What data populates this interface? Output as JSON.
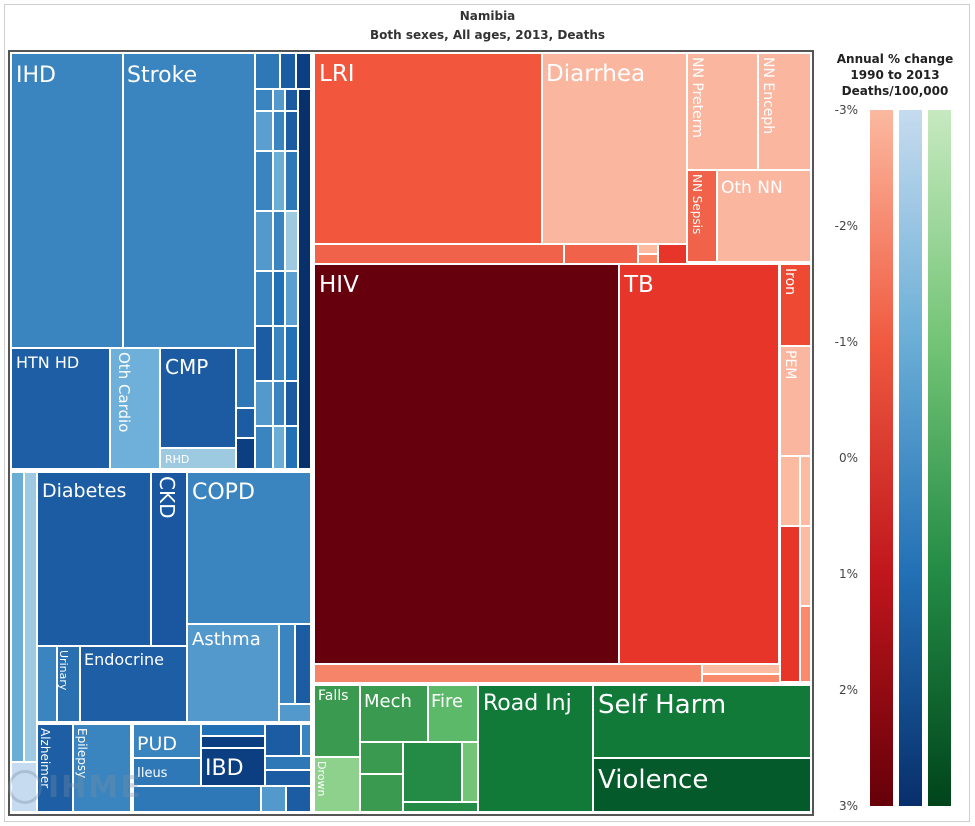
{
  "title": "Namibia",
  "subtitle": "Both sexes, All ages, 2013, Deaths",
  "legend": {
    "title_lines": [
      "Annual % change",
      "1990 to 2013",
      "Deaths/100,000"
    ],
    "ticks": [
      "-3%",
      "-2%",
      "-1%",
      "0%",
      "1%",
      "2%",
      "3%"
    ],
    "gradients": {
      "red": [
        "#fbb9a0",
        "#f05a40",
        "#c0161c",
        "#660009"
      ],
      "blue": [
        "#c6dbef",
        "#6aaed6",
        "#2270b5",
        "#082f6b"
      ],
      "green": [
        "#c7e9c0",
        "#73c476",
        "#238b45",
        "#00441b"
      ]
    }
  },
  "watermark": "IHME",
  "chart_data": {
    "type": "treemap",
    "title": "Namibia",
    "subtitle": "Both sexes, All ages, 2013, Deaths",
    "labeled_causes": [
      {
        "name": "IHD",
        "group": "non-communicable",
        "color": "#3a84c0"
      },
      {
        "name": "Stroke",
        "group": "non-communicable",
        "color": "#3a84c0"
      },
      {
        "name": "HTN HD",
        "group": "non-communicable",
        "color": "#1d5ea5"
      },
      {
        "name": "Oth Cardio",
        "group": "non-communicable",
        "color": "#6eb0da"
      },
      {
        "name": "CMP",
        "group": "non-communicable",
        "color": "#1c5ba1"
      },
      {
        "name": "RHD",
        "group": "non-communicable",
        "color": "#9ecae1"
      },
      {
        "name": "Diabetes",
        "group": "non-communicable",
        "color": "#1c5ca2"
      },
      {
        "name": "CKD",
        "group": "non-communicable",
        "color": "#1a57a0"
      },
      {
        "name": "COPD",
        "group": "non-communicable",
        "color": "#3a84c0"
      },
      {
        "name": "Asthma",
        "group": "non-communicable",
        "color": "#5499cb"
      },
      {
        "name": "Urinary",
        "group": "non-communicable",
        "color": "#2a6fb0"
      },
      {
        "name": "Endocrine",
        "group": "non-communicable",
        "color": "#1d5ea5"
      },
      {
        "name": "PUD",
        "group": "non-communicable",
        "color": "#3a84c0"
      },
      {
        "name": "Ileus",
        "group": "non-communicable",
        "color": "#2f78b8"
      },
      {
        "name": "IBD",
        "group": "non-communicable",
        "color": "#0c3f82"
      },
      {
        "name": "Alzheimer",
        "group": "non-communicable",
        "color": "#1d5ea5"
      },
      {
        "name": "Epilepsy",
        "group": "non-communicable",
        "color": "#3a84c0"
      },
      {
        "name": "LRI",
        "group": "communicable",
        "color": "#f2573d"
      },
      {
        "name": "Diarrhea",
        "group": "communicable",
        "color": "#fbb6a0"
      },
      {
        "name": "NN Preterm",
        "group": "communicable",
        "color": "#fbb6a0"
      },
      {
        "name": "NN Enceph",
        "group": "communicable",
        "color": "#fbb6a0"
      },
      {
        "name": "NN Sepsis",
        "group": "communicable",
        "color": "#f0634a"
      },
      {
        "name": "Oth NN",
        "group": "communicable",
        "color": "#fbb6a0"
      },
      {
        "name": "HIV",
        "group": "communicable",
        "color": "#67000d"
      },
      {
        "name": "TB",
        "group": "communicable",
        "color": "#e8352a"
      },
      {
        "name": "Iron",
        "group": "communicable",
        "color": "#ee4a33"
      },
      {
        "name": "PEM",
        "group": "communicable",
        "color": "#fbb6a0"
      },
      {
        "name": "Falls",
        "group": "injuries",
        "color": "#3a9a50"
      },
      {
        "name": "Drown",
        "group": "injuries",
        "color": "#8dd18c"
      },
      {
        "name": "Mech",
        "group": "injuries",
        "color": "#3a9a50"
      },
      {
        "name": "Fire",
        "group": "injuries",
        "color": "#5cb96a"
      },
      {
        "name": "Road Inj",
        "group": "injuries",
        "color": "#117a38"
      },
      {
        "name": "Self Harm",
        "group": "injuries",
        "color": "#117a38"
      },
      {
        "name": "Violence",
        "group": "injuries",
        "color": "#045a2a"
      }
    ]
  }
}
